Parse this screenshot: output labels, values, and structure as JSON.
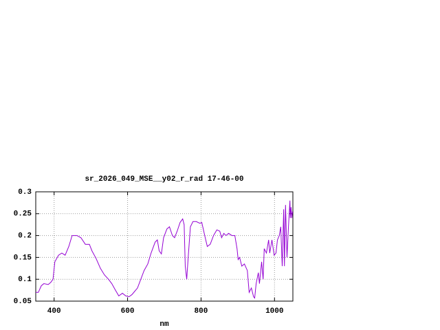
{
  "chart_data": {
    "type": "line",
    "title": "sr_2026_049_MSE__y02_r_rad 17-46-00",
    "x_label": "nm",
    "x": [
      350,
      357,
      365,
      372,
      384,
      391,
      397,
      402,
      412,
      421,
      430,
      440,
      449,
      462,
      473,
      485,
      496,
      503,
      514,
      526,
      537,
      548,
      557,
      567,
      576,
      586,
      595,
      604,
      612,
      619,
      627,
      636,
      645,
      655,
      664,
      675,
      681,
      686,
      692,
      698,
      707,
      714,
      722,
      728,
      735,
      743,
      750,
      754,
      757,
      761,
      765,
      771,
      778,
      787,
      797,
      802,
      810,
      817,
      825,
      834,
      843,
      851,
      856,
      862,
      868,
      875,
      884,
      892,
      898,
      901,
      905,
      911,
      918,
      926,
      931,
      937,
      943,
      946,
      950,
      956,
      959,
      965,
      969,
      972,
      978,
      984,
      987,
      993,
      999,
      1004,
      1008,
      1013,
      1017,
      1021,
      1025,
      1027,
      1030,
      1034,
      1038,
      1042,
      1043,
      1045,
      1047,
      1049
    ],
    "series": [
      {
        "color": "#9400d3",
        "values": [
          0.07,
          0.07,
          0.085,
          0.09,
          0.088,
          0.093,
          0.1,
          0.14,
          0.155,
          0.16,
          0.155,
          0.175,
          0.2,
          0.2,
          0.195,
          0.18,
          0.18,
          0.165,
          0.148,
          0.125,
          0.11,
          0.1,
          0.09,
          0.075,
          0.062,
          0.068,
          0.062,
          0.06,
          0.065,
          0.072,
          0.08,
          0.1,
          0.12,
          0.135,
          0.16,
          0.185,
          0.19,
          0.165,
          0.158,
          0.195,
          0.215,
          0.22,
          0.2,
          0.195,
          0.21,
          0.23,
          0.238,
          0.225,
          0.13,
          0.1,
          0.15,
          0.22,
          0.232,
          0.232,
          0.228,
          0.23,
          0.2,
          0.175,
          0.18,
          0.2,
          0.213,
          0.21,
          0.195,
          0.205,
          0.2,
          0.205,
          0.2,
          0.2,
          0.17,
          0.145,
          0.15,
          0.13,
          0.135,
          0.12,
          0.07,
          0.08,
          0.06,
          0.057,
          0.09,
          0.115,
          0.09,
          0.14,
          0.1,
          0.17,
          0.16,
          0.19,
          0.16,
          0.19,
          0.155,
          0.16,
          0.19,
          0.2,
          0.22,
          0.13,
          0.26,
          0.13,
          0.27,
          0.15,
          0.22,
          0.28,
          0.24,
          0.265,
          0.24,
          0.255
        ]
      }
    ],
    "xlim": [
      350,
      1050
    ],
    "ylim": [
      0.05,
      0.3
    ],
    "xticks": [
      400,
      600,
      800,
      1000
    ],
    "yticks": [
      0.05,
      0.1,
      0.15,
      0.2,
      0.25,
      0.3
    ],
    "grid": true
  }
}
